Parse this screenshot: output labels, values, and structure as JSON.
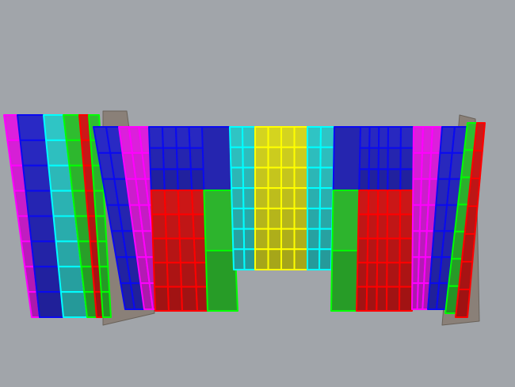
{
  "viewport": {
    "background": "#a1a5aa",
    "palette": {
      "blue": "#2a2ac8",
      "blue_edge": "#0a0af0",
      "magenta": "#e020e0",
      "magenta_edge": "#ff00ff",
      "red": "#d01818",
      "red_edge": "#ff0000",
      "green": "#30c030",
      "green_edge": "#00ff00",
      "cyan": "#30c8c8",
      "cyan_edge": "#00ffff",
      "yellow": "#d8d820",
      "yellow_edge": "#ffff00",
      "back": "#8a8078"
    },
    "front_strips": [
      {
        "top": "blue",
        "bottom": "blue"
      },
      {
        "top": "magenta",
        "bottom": "magenta"
      },
      {
        "top": "blue",
        "bottom": "red"
      },
      {
        "top": "blue",
        "bottom": "red"
      },
      {
        "top": "blue",
        "bottom": "green"
      },
      {
        "top": "cyan",
        "bottom": "cyan"
      },
      {
        "top": "yellow",
        "bottom": "yellow"
      },
      {
        "top": "yellow",
        "bottom": "yellow"
      },
      {
        "top": "cyan",
        "bottom": "cyan"
      },
      {
        "top": "blue",
        "bottom": "green"
      },
      {
        "top": "blue",
        "bottom": "red"
      },
      {
        "top": "blue",
        "bottom": "red"
      },
      {
        "top": "magenta",
        "bottom": "magenta"
      },
      {
        "top": "blue",
        "bottom": "blue"
      },
      {
        "top": "green",
        "bottom": "green"
      },
      {
        "top": "red",
        "bottom": "red"
      }
    ],
    "left_side_strips": [
      "magenta",
      "blue",
      "cyan",
      "green",
      "red",
      "green"
    ]
  }
}
